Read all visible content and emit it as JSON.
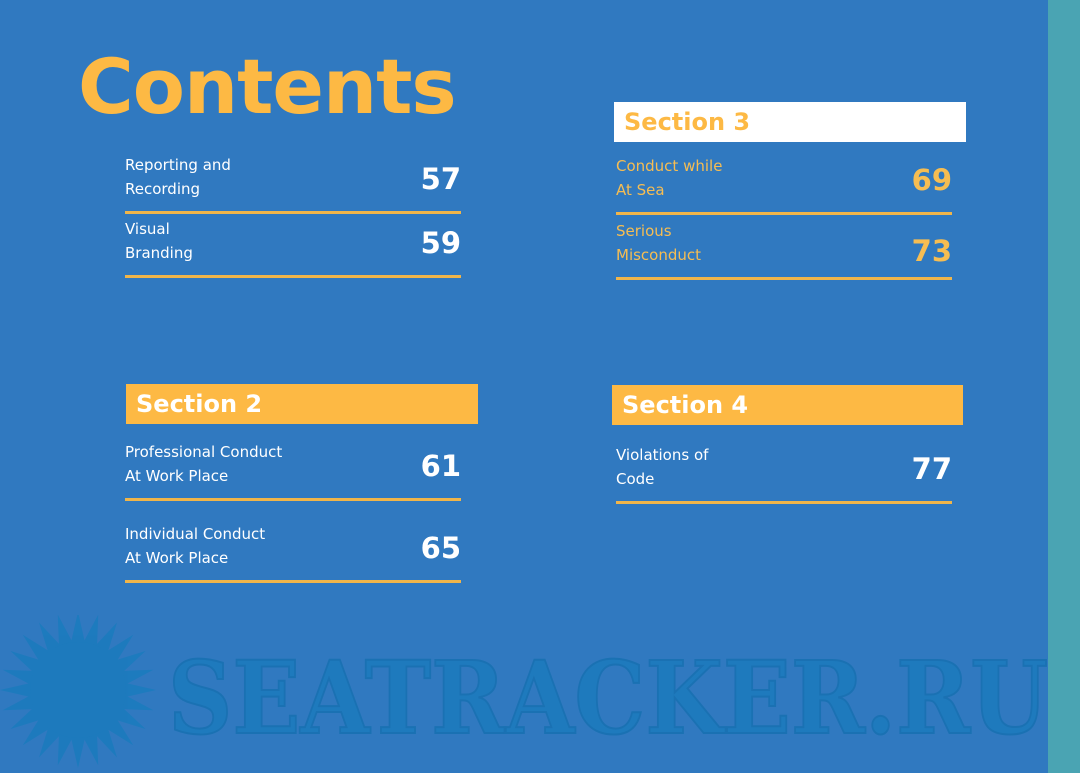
{
  "title": "Contents",
  "colors": {
    "background": "#3079c0",
    "accent": "#fdb944",
    "strip": "#4aa4b3"
  },
  "section1": {
    "entries": [
      {
        "line1": "Reporting and",
        "line2": "Recording",
        "page": "57"
      },
      {
        "line1": "Visual",
        "line2": "Branding",
        "page": "59"
      }
    ]
  },
  "section2": {
    "heading": "Section 2",
    "entries": [
      {
        "line1": "Professional Conduct",
        "line2": "At Work Place",
        "page": "61"
      },
      {
        "line1": "Individual Conduct",
        "line2": "At Work Place",
        "page": "65"
      }
    ]
  },
  "section3": {
    "heading": "Section 3",
    "entries": [
      {
        "line1": "Conduct while",
        "line2": "At Sea",
        "page": "69"
      },
      {
        "line1": "Serious",
        "line2": "Misconduct",
        "page": "73"
      }
    ]
  },
  "section4": {
    "heading": "Section 4",
    "entries": [
      {
        "line1": "Violations of",
        "line2": "Code",
        "page": "77"
      }
    ]
  },
  "watermark": {
    "text": "SEATRACKER.RU",
    "icon": "sun-icon"
  }
}
